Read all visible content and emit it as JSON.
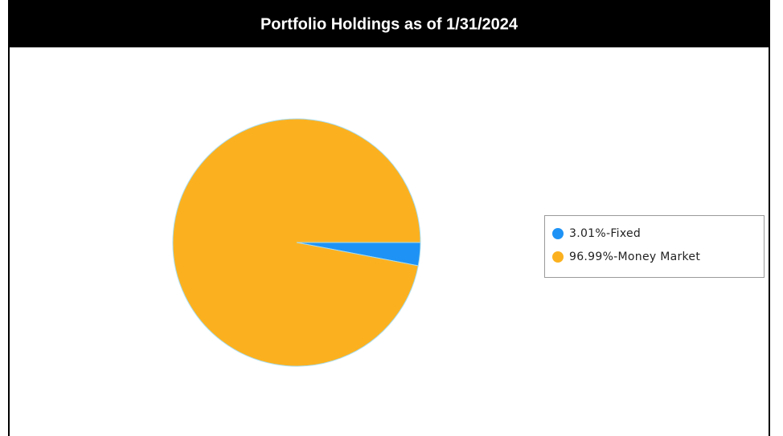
{
  "chart_data": {
    "type": "pie",
    "title": "Portfolio Holdings as of 1/31/2024",
    "values": [
      3.01,
      96.99
    ],
    "value_labels": [
      "3.01%-Fixed",
      "96.99%-Money Market"
    ],
    "colors": [
      "#1e93f5",
      "#fbb11f"
    ],
    "legend": "right"
  }
}
